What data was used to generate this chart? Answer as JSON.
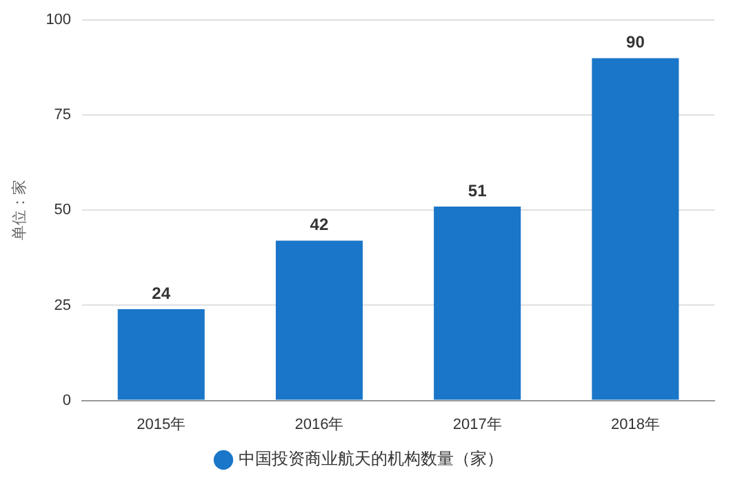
{
  "chart_data": {
    "type": "bar",
    "ylabel": "单位：家",
    "categories": [
      "2015年",
      "2016年",
      "2017年",
      "2018年"
    ],
    "series": [
      {
        "name": "中国投资商业航天的机构数量（家）",
        "color": "#1a76c8",
        "values": [
          24,
          42,
          51,
          90
        ]
      }
    ],
    "ylim": [
      0,
      100
    ],
    "yticks": [
      0,
      25,
      50,
      75,
      100
    ],
    "grid": "y",
    "legend": "bottom",
    "data_labels": true
  }
}
